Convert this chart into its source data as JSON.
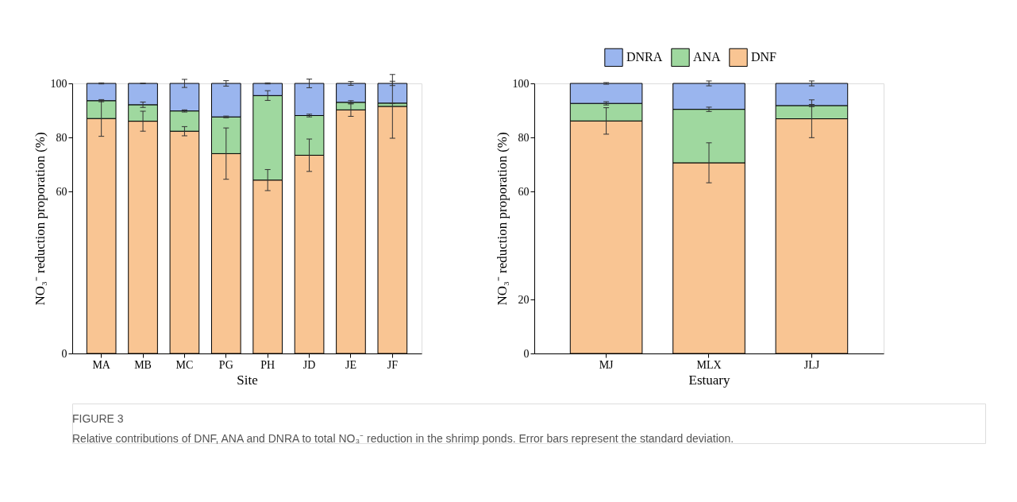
{
  "chart_data": [
    {
      "type": "bar",
      "stacked": true,
      "xlabel": "Site",
      "ylabel": "NO₃⁻ reduction proporation (%)",
      "categories": [
        "MA",
        "MB",
        "MC",
        "PG",
        "PH",
        "JD",
        "JE",
        "JF"
      ],
      "ylim": [
        0,
        100
      ],
      "yticks": [
        0,
        60,
        80,
        100
      ],
      "grid": false,
      "legend": "top right",
      "series": [
        {
          "name": "DNF",
          "color": "#f9c593",
          "values": [
            87.0,
            86.0,
            82.3,
            74.0,
            64.2,
            73.4,
            90.2,
            91.5
          ],
          "errors": [
            6.6,
            3.7,
            1.7,
            9.5,
            3.9,
            6.0,
            2.4,
            11.8
          ]
        },
        {
          "name": "ANA",
          "color": "#9fd89f",
          "values": [
            6.6,
            6.1,
            7.5,
            13.6,
            31.3,
            14.7,
            2.8,
            1.2
          ],
          "errors": [
            0.4,
            1.0,
            0.4,
            0.3,
            1.8,
            0.5,
            0.6,
            0.1
          ]
        },
        {
          "name": "DNRA",
          "color": "#9ab5ee",
          "values": [
            6.4,
            7.9,
            10.2,
            12.4,
            4.5,
            11.9,
            7.0,
            7.3
          ],
          "errors": [
            0.2,
            0.1,
            1.5,
            1.0,
            0.2,
            1.6,
            0.7,
            0.8
          ]
        }
      ],
      "annotations": [
        "FIGURE 3",
        "Relative contributions of DNF, ANA and DNRA to total NO₃⁻ reduction in the shrimp ponds. Error bars represent the standard deviation."
      ]
    },
    {
      "type": "bar",
      "stacked": true,
      "xlabel": "Estuary",
      "ylabel": "NO₃⁻ reduction proporation (%)",
      "categories": [
        "MJ",
        "MLX",
        "JLJ"
      ],
      "ylim": [
        0,
        100
      ],
      "yticks": [
        0,
        20,
        60,
        80,
        100
      ],
      "grid": false,
      "legend": "top right",
      "series": [
        {
          "name": "DNF",
          "color": "#f9c593",
          "values": [
            86.1,
            70.6,
            86.9
          ],
          "errors": [
            4.9,
            7.4,
            7.0
          ]
        },
        {
          "name": "ANA",
          "color": "#9fd89f",
          "values": [
            6.5,
            19.8,
            4.9
          ],
          "errors": [
            0.6,
            0.8,
            0.4
          ]
        },
        {
          "name": "DNRA",
          "color": "#9ab5ee",
          "values": [
            7.4,
            9.6,
            8.2
          ],
          "errors": [
            0.3,
            0.9,
            0.9
          ]
        }
      ]
    }
  ]
}
